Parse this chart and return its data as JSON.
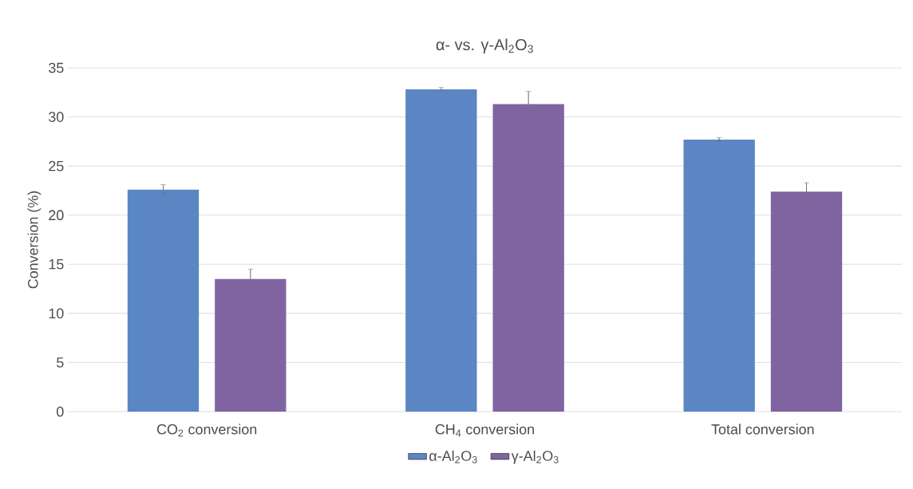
{
  "chart_data": {
    "type": "bar",
    "title": "α- vs. γ-Al$_{2}$O$_{3}$",
    "ylabel": "Conversion (%)",
    "categories": [
      "CO$_{2}$ conversion",
      "CH$_{4}$ conversion",
      "Total conversion"
    ],
    "series": [
      {
        "name": "α-Al$_{2}$O$_{3}$",
        "color": "#5b86c4",
        "values": [
          22.6,
          32.8,
          27.7
        ],
        "errors": [
          0.5,
          0.2,
          0.2
        ]
      },
      {
        "name": "γ-Al$_{2}$O$_{3}$",
        "color": "#8064a2",
        "values": [
          13.5,
          31.3,
          22.4
        ],
        "errors": [
          1.0,
          1.3,
          0.9
        ]
      }
    ],
    "ylim": [
      0,
      35
    ],
    "yticks": [
      0,
      5,
      10,
      15,
      20,
      25,
      30,
      35
    ],
    "grid": "y",
    "legend": "bottom"
  }
}
